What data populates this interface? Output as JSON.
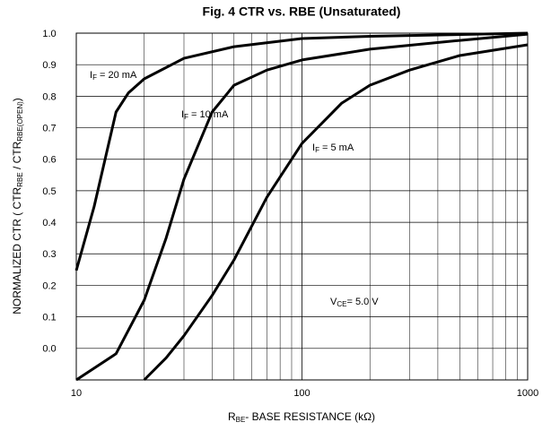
{
  "chart_data": {
    "type": "line",
    "title": "Fig. 4  CTR vs. RBE (Unsaturated)",
    "x_label": [
      "R",
      "BE",
      "- BASE RESISTANCE (kΩ)"
    ],
    "y_label": [
      "NORMALIZED CTR ( CTR",
      "RBE",
      " / CTR",
      "RBE(OPEN)",
      ")"
    ],
    "log_x": true,
    "grid": true,
    "xlim": [
      10,
      1000
    ],
    "xticks": [
      10,
      100,
      1000
    ],
    "xminor_ticks": [
      20,
      30,
      40,
      50,
      60,
      70,
      80,
      90,
      200,
      300,
      400,
      500,
      600,
      700,
      800,
      900
    ],
    "ylim": [
      -0.1,
      1.0
    ],
    "yticks": [
      {
        "value": 1,
        "label": "1.0"
      },
      0.9,
      0.8,
      0.7,
      0.6,
      0.5,
      0.4,
      0.3,
      0.2,
      0.1,
      {
        "value": 0,
        "label": "0.0"
      }
    ],
    "series": [
      {
        "name": [
          "I",
          "F",
          "  = 20 mA"
        ],
        "color": "#000000",
        "x": [
          10,
          12,
          15,
          17,
          20,
          30,
          50,
          100,
          200,
          1000
        ],
        "values": [
          0.247,
          0.45,
          0.75,
          0.81,
          0.855,
          0.92,
          0.957,
          0.983,
          0.99,
          1.0
        ]
      },
      {
        "name": [
          "I",
          "F",
          "  = 10 mA"
        ],
        "color": "#000000",
        "x": [
          10,
          15,
          20,
          25,
          30,
          40,
          50,
          70,
          100,
          200,
          500,
          1000
        ],
        "values": [
          -0.1,
          -0.017,
          0.153,
          0.35,
          0.537,
          0.75,
          0.835,
          0.883,
          0.915,
          0.949,
          0.977,
          0.997
        ]
      },
      {
        "name": [
          "I",
          "F",
          "  = 5 mA"
        ],
        "color": "#000000",
        "x": [
          20,
          25,
          30,
          40,
          50,
          70,
          100,
          150,
          200,
          300,
          500,
          1000
        ],
        "values": [
          -0.1,
          -0.03,
          0.04,
          0.168,
          0.281,
          0.48,
          0.65,
          0.778,
          0.835,
          0.883,
          0.929,
          0.963
        ]
      }
    ],
    "annotations": [
      [
        "V",
        "CE",
        "= 5.0 V"
      ]
    ]
  }
}
